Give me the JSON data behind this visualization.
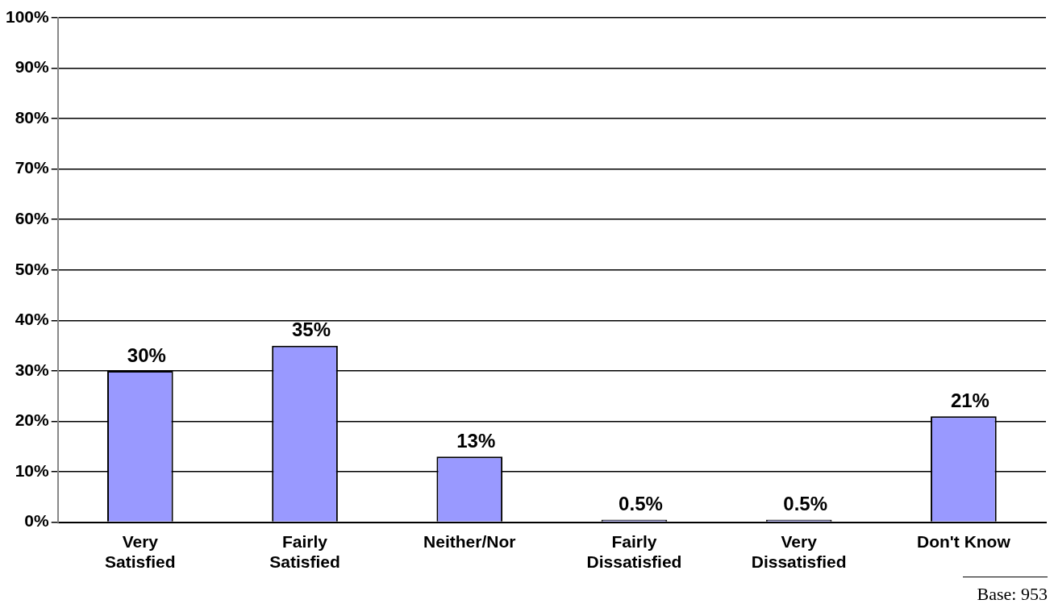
{
  "chart_data": {
    "type": "bar",
    "categories": [
      "Very Satisfied",
      "Fairly Satisfied",
      "Neither/Nor",
      "Fairly Dissatisfied",
      "Very Dissatisfied",
      "Don't Know"
    ],
    "values": [
      30,
      35,
      13,
      0.5,
      0.5,
      21
    ],
    "value_labels": [
      "30%",
      "35%",
      "13%",
      "0.5%",
      "0.5%",
      "21%"
    ],
    "color": "#9999ff",
    "ylim": [
      0,
      100
    ],
    "yticks": [
      {
        "value": 0,
        "label": "0%"
      },
      {
        "value": 10,
        "label": "10%"
      },
      {
        "value": 20,
        "label": "20%"
      },
      {
        "value": 30,
        "label": "30%"
      },
      {
        "value": 40,
        "label": "40%"
      },
      {
        "value": 50,
        "label": "50%"
      },
      {
        "value": 60,
        "label": "60%"
      },
      {
        "value": 70,
        "label": "70%"
      },
      {
        "value": 80,
        "label": "80%"
      },
      {
        "value": 90,
        "label": "90%"
      },
      {
        "value": 100,
        "label": "100%"
      }
    ],
    "grid": "y",
    "legend": false,
    "annotations": [
      "Base:  953"
    ]
  }
}
